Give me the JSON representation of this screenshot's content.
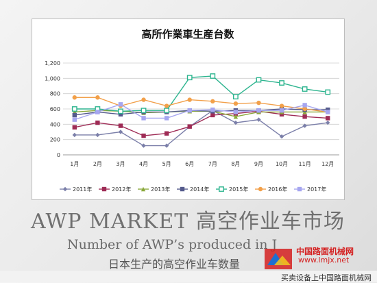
{
  "slide": {
    "headline": "AWP MARKET 高空作业车市场",
    "subtitle_en": "Number of AWP’s produced in J",
    "subtitle_cn": "日本生产的高空作业车数量"
  },
  "watermark": {
    "brand": "中国路面机械网",
    "url": "www.lmjx.net",
    "footer": "买卖设备上中国路面机械网"
  },
  "colors": {
    "2011年": "#7b7fa9",
    "2012年": "#9e2b55",
    "2013年": "#8aa83a",
    "2014年": "#545a8c",
    "2015年": "#2bb48e",
    "2016年": "#f2a04a",
    "2017年": "#a6a6f0"
  },
  "chart_data": {
    "type": "line",
    "title": "高所作業車生産台数",
    "categories": [
      "1月",
      "2月",
      "3月",
      "4月",
      "5月",
      "6月",
      "7月",
      "8月",
      "9月",
      "10月",
      "11月",
      "12月"
    ],
    "ylim": [
      0,
      1200
    ],
    "yticks": [
      "0",
      "200",
      "400",
      "600",
      "800",
      "1,000",
      "1,200"
    ],
    "grid": true,
    "legend_position": "bottom",
    "series": [
      {
        "name": "2011年",
        "values": [
          260,
          260,
          300,
          120,
          120,
          370,
          580,
          420,
          460,
          240,
          380,
          420
        ],
        "marker": "diamond"
      },
      {
        "name": "2012年",
        "values": [
          360,
          420,
          380,
          250,
          280,
          370,
          520,
          540,
          570,
          530,
          500,
          480
        ],
        "marker": "square"
      },
      {
        "name": "2013年",
        "values": [
          560,
          580,
          570,
          550,
          560,
          570,
          570,
          500,
          560,
          560,
          560,
          560
        ],
        "marker": "triangle"
      },
      {
        "name": "2014年",
        "values": [
          520,
          560,
          530,
          560,
          560,
          580,
          570,
          580,
          580,
          600,
          590,
          590
        ],
        "marker": "square"
      },
      {
        "name": "2015年",
        "values": [
          600,
          600,
          570,
          580,
          580,
          1010,
          1030,
          760,
          980,
          940,
          860,
          820
        ],
        "marker": "square-open"
      },
      {
        "name": "2016年",
        "values": [
          750,
          750,
          640,
          720,
          640,
          720,
          700,
          670,
          680,
          640,
          600,
          560
        ],
        "marker": "circle"
      },
      {
        "name": "2017年",
        "values": [
          460,
          560,
          660,
          480,
          480,
          580,
          590,
          560,
          580,
          580,
          650,
          560
        ],
        "marker": "square"
      }
    ]
  }
}
